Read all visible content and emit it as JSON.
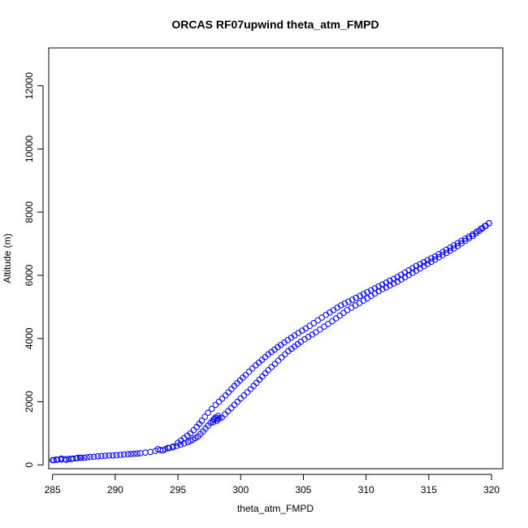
{
  "chart_data": {
    "type": "scatter",
    "title": "ORCAS RF07upwind theta_atm_FMPD",
    "xlabel": "theta_atm_FMPD",
    "ylabel": "Altitude (m)",
    "xlim": [
      284.7,
      320.9
    ],
    "ylim": [
      -120,
      13200
    ],
    "xticks": [
      285,
      290,
      295,
      300,
      305,
      310,
      315,
      320
    ],
    "yticks": [
      0,
      2000,
      4000,
      6000,
      8000,
      10000,
      12000
    ],
    "grid": false,
    "marker": "open-circle",
    "series": [
      {
        "color": "#0000ff",
        "descent": {
          "x": [
            319.8,
            318.5,
            317.0,
            315.5,
            314.0,
            312.5,
            311.0,
            309.8,
            308.5,
            307.3,
            306.0,
            304.8,
            303.8,
            303.0,
            302.2,
            301.5,
            300.8,
            300.0,
            299.5,
            299.0,
            298.5,
            298.2
          ],
          "y": [
            7650,
            7250,
            6850,
            6500,
            6150,
            5800,
            5500,
            5200,
            4900,
            4550,
            4200,
            3900,
            3600,
            3300,
            3000,
            2700,
            2400,
            2100,
            1900,
            1700,
            1500,
            1450
          ]
        },
        "ascent": {
          "x": [
            319.8,
            318.5,
            317.0,
            315.5,
            314.0,
            312.5,
            311.0,
            309.5,
            308.0,
            306.8,
            305.5,
            304.3,
            303.2,
            302.2,
            301.2,
            300.4,
            299.5,
            298.8,
            298.0,
            297.4,
            296.9,
            296.5,
            296.0,
            295.5,
            295.0
          ],
          "y": [
            7650,
            7300,
            6950,
            6600,
            6300,
            5950,
            5650,
            5350,
            5050,
            4750,
            4400,
            4100,
            3800,
            3500,
            3150,
            2850,
            2500,
            2200,
            1900,
            1650,
            1400,
            1200,
            1000,
            850,
            700
          ]
        },
        "low_leg": {
          "x": [
            298.0,
            297.8,
            297.6,
            297.4,
            297.2,
            297.0,
            296.8,
            296.6,
            296.4,
            296.2,
            296.0,
            295.8,
            295.5,
            295.2,
            294.9,
            294.6,
            294.3,
            294.0,
            293.6,
            293.2,
            292.8,
            292.4,
            292.0,
            291.5,
            291.0,
            290.4,
            289.8,
            289.2,
            288.6,
            288.0,
            287.5,
            287.0,
            286.6,
            286.3,
            286.0,
            285.7,
            285.4,
            285.1
          ],
          "y": [
            1500,
            1420,
            1330,
            1240,
            1150,
            1060,
            980,
            900,
            850,
            800,
            760,
            720,
            680,
            640,
            600,
            560,
            530,
            500,
            470,
            440,
            410,
            390,
            370,
            350,
            340,
            320,
            300,
            290,
            270,
            250,
            230,
            220,
            200,
            190,
            180,
            170,
            160,
            150
          ]
        },
        "clusters": [
          {
            "x": [
              285.0,
              285.3,
              285.7,
              286.1,
              286.5,
              286.9,
              287.2
            ],
            "y": [
              150,
              170,
              200,
              160,
              190,
              210,
              230
            ]
          },
          {
            "x": [
              298.2,
              298.0,
              297.9,
              298.1,
              297.8,
              298.3
            ],
            "y": [
              1550,
              1500,
              1450,
              1400,
              1350,
              1480
            ]
          },
          {
            "x": [
              293.4,
              293.8,
              294.2,
              294.6
            ],
            "y": [
              500,
              460,
              540,
              580
            ]
          }
        ]
      }
    ]
  }
}
